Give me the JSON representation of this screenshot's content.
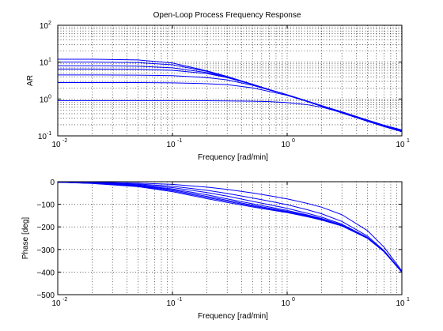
{
  "title": "Open-Loop Process Frequency Response",
  "chart_data": [
    {
      "type": "line",
      "xscale": "log",
      "yscale": "log",
      "xlim": [
        0.01,
        10
      ],
      "ylim": [
        0.1,
        100
      ],
      "xlabel": "Frequency [rad/min]",
      "ylabel": "AR",
      "grid": true,
      "x_ticks": [
        {
          "base": "10",
          "exp": "-2"
        },
        {
          "base": "10",
          "exp": "-1"
        },
        {
          "base": "10",
          "exp": "0"
        },
        {
          "base": "10",
          "exp": "1"
        }
      ],
      "y_ticks": [
        {
          "base": "10",
          "exp": "-1"
        },
        {
          "base": "10",
          "exp": "0"
        },
        {
          "base": "10",
          "exp": "1"
        },
        {
          "base": "10",
          "exp": "2"
        }
      ],
      "series_color": "#0000ff",
      "series": [
        {
          "x": [
            0.01,
            0.02,
            0.05,
            0.1,
            0.2,
            0.3,
            0.5,
            0.7,
            1,
            1.5,
            2,
            3,
            5,
            7,
            10
          ],
          "values": [
            12,
            12,
            11.5,
            9.5,
            5.8,
            4.1,
            2.5,
            1.8,
            1.3,
            0.88,
            0.66,
            0.45,
            0.27,
            0.195,
            0.145
          ]
        },
        {
          "x": [
            0.01,
            0.02,
            0.05,
            0.1,
            0.2,
            0.3,
            0.5,
            0.7,
            1,
            1.5,
            2,
            3,
            5,
            7,
            10
          ],
          "values": [
            10,
            10,
            9.7,
            8.5,
            5.6,
            4.0,
            2.5,
            1.8,
            1.3,
            0.88,
            0.66,
            0.44,
            0.26,
            0.19,
            0.14
          ]
        },
        {
          "x": [
            0.01,
            0.02,
            0.05,
            0.1,
            0.2,
            0.3,
            0.5,
            0.7,
            1,
            1.5,
            2,
            3,
            5,
            7,
            10
          ],
          "values": [
            8,
            8,
            7.8,
            7.0,
            5.2,
            3.9,
            2.5,
            1.8,
            1.3,
            0.87,
            0.65,
            0.43,
            0.26,
            0.185,
            0.135
          ]
        },
        {
          "x": [
            0.01,
            0.02,
            0.05,
            0.1,
            0.2,
            0.3,
            0.5,
            0.7,
            1,
            1.5,
            2,
            3,
            5,
            7,
            10
          ],
          "values": [
            6.5,
            6.5,
            6.4,
            6.0,
            4.9,
            3.8,
            2.45,
            1.8,
            1.3,
            0.86,
            0.64,
            0.42,
            0.25,
            0.18,
            0.13
          ]
        },
        {
          "x": [
            0.01,
            0.02,
            0.05,
            0.1,
            0.2,
            0.3,
            0.5,
            0.7,
            1,
            1.5,
            2,
            3,
            5,
            7,
            10
          ],
          "values": [
            4.5,
            4.5,
            4.45,
            4.3,
            3.8,
            3.3,
            2.35,
            1.75,
            1.3,
            0.86,
            0.64,
            0.42,
            0.25,
            0.18,
            0.13
          ]
        },
        {
          "x": [
            0.01,
            0.02,
            0.05,
            0.1,
            0.2,
            0.3,
            0.5,
            0.7,
            1,
            1.5,
            2,
            3,
            5,
            7,
            10
          ],
          "values": [
            2.8,
            2.8,
            2.8,
            2.75,
            2.6,
            2.45,
            2.0,
            1.6,
            1.25,
            0.85,
            0.63,
            0.42,
            0.25,
            0.18,
            0.13
          ]
        },
        {
          "x": [
            0.01,
            0.02,
            0.05,
            0.1,
            0.2,
            0.3,
            0.5,
            0.7,
            1,
            1.5,
            2,
            3,
            5,
            7,
            10
          ],
          "values": [
            0.9,
            0.9,
            0.9,
            0.9,
            0.9,
            0.89,
            0.87,
            0.85,
            0.8,
            0.7,
            0.6,
            0.43,
            0.25,
            0.18,
            0.13
          ]
        }
      ]
    },
    {
      "type": "line",
      "xscale": "log",
      "xlim": [
        0.01,
        10
      ],
      "ylim": [
        -500,
        0
      ],
      "xlabel": "Frequency [rad/min]",
      "ylabel": "Phase [deg]",
      "grid": true,
      "x_ticks": [
        {
          "base": "10",
          "exp": "-2"
        },
        {
          "base": "10",
          "exp": "-1"
        },
        {
          "base": "10",
          "exp": "0"
        },
        {
          "base": "10",
          "exp": "1"
        }
      ],
      "y_ticks": [
        "0",
        "−100",
        "−200",
        "−300",
        "−400",
        "−500"
      ],
      "y_tick_values": [
        0,
        -100,
        -200,
        -300,
        -400,
        -500
      ],
      "series_color": "#0000ff",
      "series": [
        {
          "x": [
            0.01,
            0.02,
            0.05,
            0.1,
            0.2,
            0.3,
            0.5,
            0.7,
            1,
            1.5,
            2,
            3,
            5,
            7,
            10
          ],
          "values": [
            -2,
            -8,
            -22,
            -44,
            -75,
            -92,
            -112,
            -124,
            -137,
            -155,
            -170,
            -196,
            -250,
            -310,
            -400
          ]
        },
        {
          "x": [
            0.01,
            0.02,
            0.05,
            0.1,
            0.2,
            0.3,
            0.5,
            0.7,
            1,
            1.5,
            2,
            3,
            5,
            7,
            10
          ],
          "values": [
            -2,
            -7,
            -20,
            -40,
            -70,
            -87,
            -108,
            -121,
            -134,
            -153,
            -168,
            -195,
            -250,
            -310,
            -400
          ]
        },
        {
          "x": [
            0.01,
            0.02,
            0.05,
            0.1,
            0.2,
            0.3,
            0.5,
            0.7,
            1,
            1.5,
            2,
            3,
            5,
            7,
            10
          ],
          "values": [
            -2,
            -7,
            -18,
            -36,
            -65,
            -82,
            -104,
            -117,
            -131,
            -150,
            -166,
            -194,
            -249,
            -310,
            -400
          ]
        },
        {
          "x": [
            0.01,
            0.02,
            0.05,
            0.1,
            0.2,
            0.3,
            0.5,
            0.7,
            1,
            1.5,
            2,
            3,
            5,
            7,
            10
          ],
          "values": [
            -2,
            -6,
            -16,
            -32,
            -58,
            -76,
            -98,
            -112,
            -127,
            -147,
            -163,
            -192,
            -248,
            -309,
            -400
          ]
        },
        {
          "x": [
            0.01,
            0.02,
            0.05,
            0.1,
            0.2,
            0.3,
            0.5,
            0.7,
            1,
            1.5,
            2,
            3,
            5,
            7,
            10
          ],
          "values": [
            -1.5,
            -5,
            -13,
            -26,
            -48,
            -64,
            -87,
            -102,
            -118,
            -140,
            -157,
            -188,
            -246,
            -308,
            -400
          ]
        },
        {
          "x": [
            0.01,
            0.02,
            0.05,
            0.1,
            0.2,
            0.3,
            0.5,
            0.7,
            1,
            1.5,
            2,
            3,
            5,
            7,
            10
          ],
          "values": [
            -1,
            -4,
            -10,
            -20,
            -38,
            -52,
            -72,
            -86,
            -102,
            -124,
            -142,
            -176,
            -240,
            -305,
            -398
          ]
        },
        {
          "x": [
            0.01,
            0.02,
            0.05,
            0.1,
            0.2,
            0.3,
            0.5,
            0.7,
            1,
            1.5,
            2,
            3,
            5,
            7,
            10
          ],
          "values": [
            -1,
            -2,
            -6,
            -12,
            -24,
            -34,
            -50,
            -62,
            -76,
            -96,
            -113,
            -146,
            -216,
            -290,
            -395
          ]
        }
      ]
    }
  ]
}
